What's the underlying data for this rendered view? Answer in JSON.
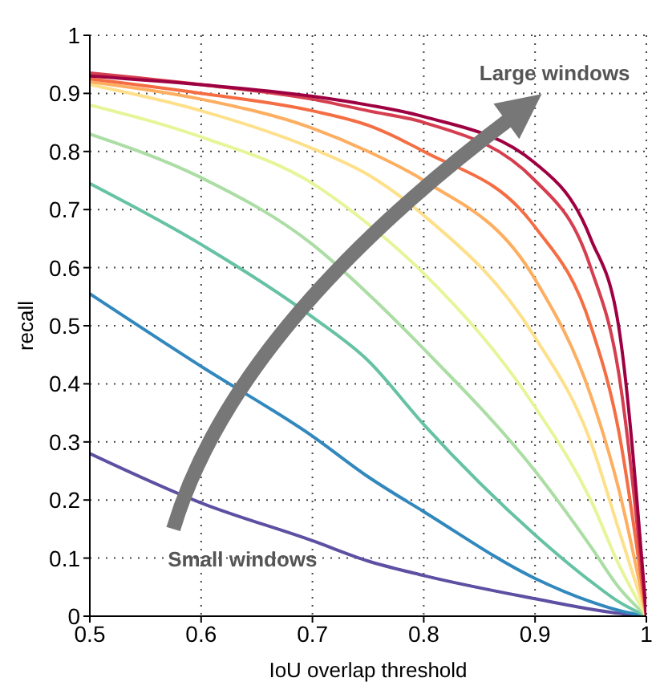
{
  "chart_data": {
    "type": "line",
    "xlabel": "IoU overlap threshold",
    "ylabel": "recall",
    "x": [
      0.5,
      0.6,
      0.7,
      0.75,
      0.8,
      0.9,
      0.95,
      0.975,
      1
    ],
    "series": [
      {
        "color": "#5e4fa2",
        "values": [
          0.28,
          0.195,
          0.13,
          0.095,
          0.07,
          0.03,
          0.012,
          0.005,
          0
        ]
      },
      {
        "color": "#3288bd",
        "values": [
          0.555,
          0.43,
          0.31,
          0.24,
          0.18,
          0.065,
          0.025,
          0.01,
          0
        ]
      },
      {
        "color": "#66c2a5",
        "values": [
          0.745,
          0.64,
          0.515,
          0.44,
          0.33,
          0.14,
          0.06,
          0.025,
          0
        ]
      },
      {
        "color": "#abdda4",
        "values": [
          0.83,
          0.755,
          0.64,
          0.555,
          0.46,
          0.25,
          0.12,
          0.05,
          0
        ]
      },
      {
        "color": "#e6f598",
        "values": [
          0.88,
          0.825,
          0.745,
          0.675,
          0.59,
          0.36,
          0.2,
          0.09,
          0
        ]
      },
      {
        "color": "#fee08b",
        "values": [
          0.915,
          0.87,
          0.805,
          0.76,
          0.69,
          0.48,
          0.3,
          0.15,
          0
        ]
      },
      {
        "color": "#fdae61",
        "values": [
          0.92,
          0.89,
          0.84,
          0.8,
          0.75,
          0.58,
          0.38,
          0.22,
          0
        ]
      },
      {
        "color": "#f46d43",
        "values": [
          0.925,
          0.9,
          0.87,
          0.845,
          0.8,
          0.67,
          0.5,
          0.32,
          0
        ]
      },
      {
        "color": "#d53e4f",
        "values": [
          0.935,
          0.915,
          0.89,
          0.87,
          0.85,
          0.75,
          0.6,
          0.42,
          0
        ]
      },
      {
        "color": "#9e0142",
        "values": [
          0.93,
          0.915,
          0.895,
          0.88,
          0.86,
          0.78,
          0.65,
          0.5,
          0
        ]
      }
    ],
    "xlim": [
      0.5,
      1
    ],
    "xticks": [
      0.5,
      0.6,
      0.7,
      0.8,
      0.9,
      1
    ],
    "ylim": [
      0,
      1
    ],
    "yticks": [
      0,
      0.1,
      0.2,
      0.3,
      0.4,
      0.5,
      0.6,
      0.7,
      0.8,
      0.9,
      1
    ],
    "grid": true,
    "legend": false,
    "marker": "none",
    "line_style": "solid",
    "annotations": [
      "Small windows",
      "Large windows"
    ]
  }
}
